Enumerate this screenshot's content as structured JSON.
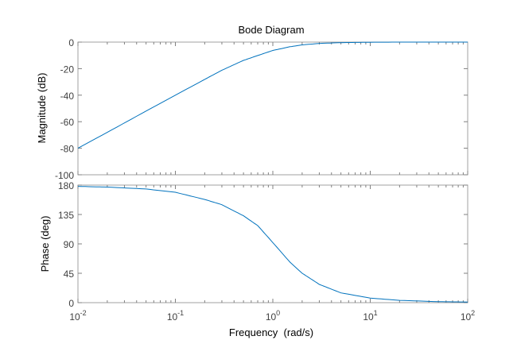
{
  "chart_data": [
    {
      "type": "line",
      "title": "Bode Diagram",
      "ylabel": "Magnitude (dB)",
      "xlabel": "",
      "xscale": "log",
      "xlim": [
        0.01,
        100
      ],
      "ylim": [
        -100,
        0
      ],
      "yticks": [
        0,
        -20,
        -40,
        -60,
        -80,
        -100
      ],
      "grid": false,
      "series": [
        {
          "color": "#0072bd",
          "x": [
            0.01,
            0.02,
            0.05,
            0.1,
            0.2,
            0.3,
            0.5,
            0.7,
            1,
            1.5,
            2,
            3,
            5,
            10,
            20,
            50,
            100
          ],
          "y": [
            -80,
            -68,
            -52,
            -40,
            -28.1,
            -21.2,
            -13.8,
            -10.1,
            -6.3,
            -3.5,
            -2.1,
            -1.0,
            -0.4,
            -0.1,
            0,
            0,
            0
          ]
        }
      ]
    },
    {
      "type": "line",
      "ylabel": "Phase (deg)",
      "xlabel": "Frequency  (rad/s)",
      "xscale": "log",
      "xlim": [
        0.01,
        100
      ],
      "ylim": [
        0,
        180
      ],
      "yticks": [
        0,
        45,
        90,
        135,
        180
      ],
      "xticks": [
        {
          "base": "10",
          "exp": "-2",
          "value": 0.01
        },
        {
          "base": "10",
          "exp": "-1",
          "value": 0.1
        },
        {
          "base": "10",
          "exp": "0",
          "value": 1
        },
        {
          "base": "10",
          "exp": "1",
          "value": 10
        },
        {
          "base": "10",
          "exp": "2",
          "value": 100
        }
      ],
      "grid": false,
      "series": [
        {
          "color": "#0072bd",
          "x": [
            0.01,
            0.02,
            0.05,
            0.1,
            0.2,
            0.3,
            0.5,
            0.7,
            1,
            1.5,
            2,
            3,
            5,
            10,
            20,
            50,
            100
          ],
          "y": [
            178,
            177,
            174,
            169,
            158,
            150,
            133,
            118,
            92,
            62,
            45,
            28,
            15,
            7,
            3.5,
            1.5,
            1
          ]
        }
      ]
    }
  ]
}
